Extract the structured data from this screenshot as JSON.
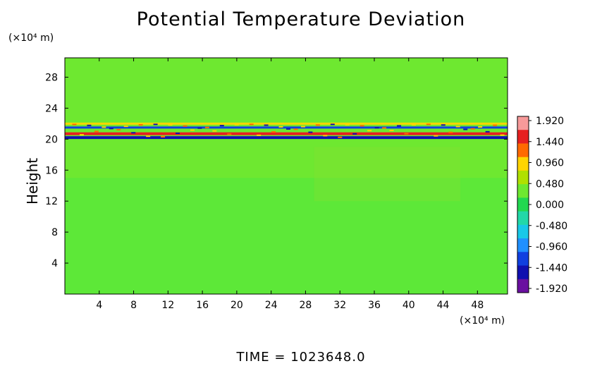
{
  "chart_data": {
    "type": "heatmap",
    "title": "Potential Temperature Deviation",
    "ylabel": "Height",
    "y_unit": "(×10⁴ m)",
    "x_unit": "(×10⁴ m)",
    "xlim": [
      0,
      51.5
    ],
    "ylim": [
      0,
      30.5
    ],
    "x_ticks": [
      4,
      8,
      12,
      16,
      20,
      24,
      28,
      32,
      36,
      40,
      44,
      48
    ],
    "y_ticks": [
      4,
      8,
      12,
      16,
      20,
      24,
      28
    ],
    "colorbar": {
      "labels": [
        "1.920",
        "1.440",
        "0.960",
        "0.480",
        "0.000",
        "-0.480",
        "-0.960",
        "-1.440",
        "-1.920"
      ],
      "min": -1.92,
      "max": 1.92,
      "colors": [
        "#f79a9a",
        "#e62020",
        "#ff6a00",
        "#ffd400",
        "#b0e000",
        "#6ee830",
        "#22d850",
        "#22d8a8",
        "#18c8e8",
        "#2090ff",
        "#1040e0",
        "#1010b0",
        "#6a10a0"
      ]
    },
    "background_value": 0.2,
    "bands": [
      {
        "y": 20.7,
        "value": 1.6
      },
      {
        "y": 20.2,
        "value": -1.7
      },
      {
        "y": 21.5,
        "value": -1.2
      },
      {
        "y": 22.0,
        "value": 0.9
      }
    ]
  },
  "footer": {
    "time_label": "TIME",
    "time_equals": "=",
    "time_value": "1023648.0"
  }
}
